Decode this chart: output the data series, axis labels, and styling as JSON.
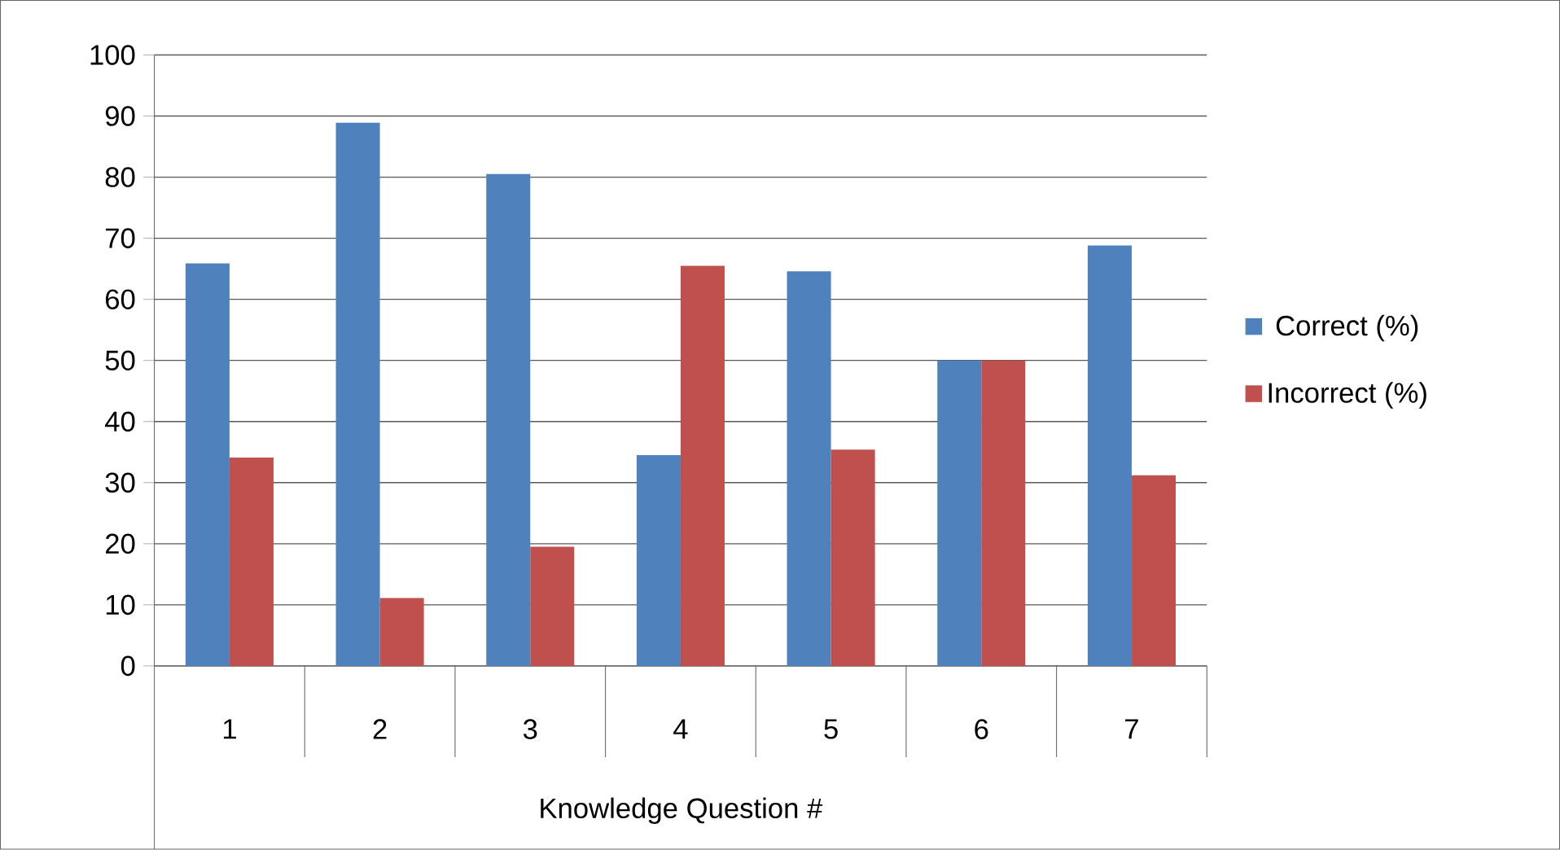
{
  "chart_data": {
    "type": "bar",
    "xlabel": "Knowledge Question #",
    "categories": [
      "1",
      "2",
      "3",
      "4",
      "5",
      "6",
      "7"
    ],
    "series": [
      {
        "name": "Correct (%)",
        "color": "#4f81bd",
        "values": [
          65.9,
          88.9,
          80.5,
          34.5,
          64.6,
          50,
          68.8
        ]
      },
      {
        "name": "Incorrect (%)",
        "color": "#c0504d",
        "values": [
          34.1,
          11.1,
          19.5,
          65.5,
          35.4,
          50,
          31.2
        ]
      }
    ],
    "ylim": [
      0,
      100
    ],
    "yticks": [
      0,
      10,
      20,
      30,
      40,
      50,
      60,
      70,
      80,
      90,
      100
    ],
    "grid": "y",
    "legend": "right"
  }
}
